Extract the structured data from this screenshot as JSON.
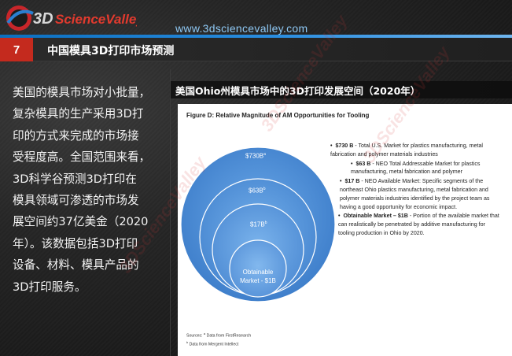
{
  "header": {
    "logo_text": "3DScienceValley",
    "site_url": "www.3dsciencevalley.com"
  },
  "section": {
    "number": "7",
    "title": "中国模具3D打印市场预测"
  },
  "body_lines": [
    "美国的模具市场对小批量，",
    "复杂模具的生产采用3D打",
    "印的方式来完成的市场接",
    "受程度高。全国范围来看，",
    "3D科学谷预测3D打印在",
    "模具领域可渗透的市场发",
    "展空间约37亿美金（2020",
    "年）。该数据包括3D打印",
    "设备、材料、模具产品的",
    "3D打印服务。"
  ],
  "panel": {
    "title": "美国Ohio州模具市场中的3D打印发展空间（2020年）"
  },
  "figure": {
    "title": "Figure D: Relative Magnitude of AM Opportunities for Tooling",
    "bubbles": [
      {
        "label": "$730B",
        "sup": "a",
        "value": 730
      },
      {
        "label": "$63B",
        "sup": "b",
        "value": 63
      },
      {
        "label": "$17B",
        "sup": "b",
        "value": 17
      },
      {
        "label_line1": "Obtainable",
        "label_line2": "Market - $1B",
        "value": 1
      }
    ],
    "bullets": [
      {
        "value": "$730 B",
        "text": " - Total U.S. Market for plastics manufacturing, metal fabrication and polymer materials industries"
      },
      {
        "value": "$63 B",
        "text": " - NEO Total Addressable Market for plastics manufacturing, metal fabrication and polymer"
      },
      {
        "value": "$17 B",
        "text": " - NEO Available Market: Specific segments of the northeast Ohio plastics manufacturing, metal fabrication and polymer materials industries identified by the project team as having a good opportunity for economic impact."
      },
      {
        "value": "Obtainable Market – $1B",
        "text": " - Portion of the available market that can realistically be penetrated by additive manufacturing for tooling production in Ohio by 2020."
      }
    ],
    "sources_line1": "Sources: ",
    "sources_a": "a",
    "sources_a_text": " Data from FirstResearch",
    "sources_b": "b",
    "sources_b_text": " Data from Mergent Intellect"
  },
  "colors": {
    "accent_red": "#c42a1e",
    "header_blue": "#1a7fd4",
    "bubble_outer": "#4f8fd6",
    "bubble_inner": "#5e9be0"
  }
}
